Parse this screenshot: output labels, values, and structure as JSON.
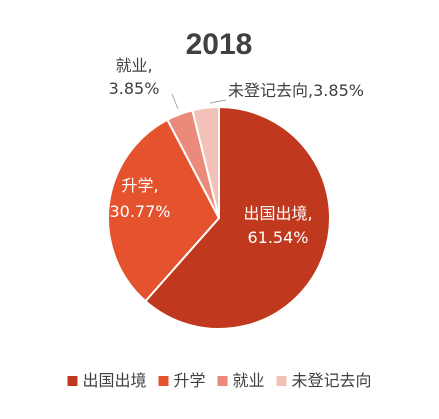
{
  "chart_data": {
    "type": "pie",
    "title": "2018",
    "slices": [
      {
        "label": "出国出境",
        "value": 61.54,
        "value_text": "61.54%",
        "color": "#c0391e"
      },
      {
        "label": "升学",
        "value": 30.77,
        "value_text": "30.77%",
        "color": "#e4532e"
      },
      {
        "label": "就业",
        "value": 3.85,
        "value_text": "3.85%",
        "color": "#eb8a7a"
      },
      {
        "label": "未登记去向",
        "value": 3.85,
        "value_text": "3.85%",
        "color": "#f4c1b8"
      }
    ],
    "legend": [
      "出国出境",
      "升学",
      "就业",
      "未登记去向"
    ],
    "legend_position": "bottom",
    "label_separator": ","
  }
}
